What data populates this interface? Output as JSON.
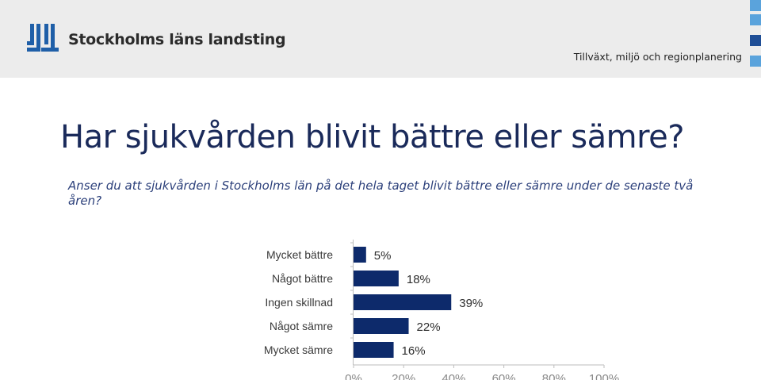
{
  "header": {
    "logo_text": "Stockholms läns landsting",
    "department": "Tillväxt, miljö och regionplanering",
    "colors": {
      "background": "#ececec",
      "accent": "#1f5fa8"
    }
  },
  "title": "Har sjukvården blivit bättre eller sämre?",
  "subtitle": "Anser du att sjukvården i Stockholms län på det hela taget blivit bättre eller sämre under de senaste två åren?",
  "chart_data": {
    "type": "bar",
    "orientation": "horizontal",
    "categories": [
      "Mycket bättre",
      "Något bättre",
      "Ingen skillnad",
      "Något sämre",
      "Mycket sämre"
    ],
    "values": [
      5,
      18,
      39,
      22,
      16
    ],
    "value_labels": [
      "5%",
      "18%",
      "39%",
      "22%",
      "16%"
    ],
    "xlim": [
      0,
      100
    ],
    "x_ticks": [
      "0%",
      "20%",
      "40%",
      "60%",
      "80%",
      "100%"
    ],
    "bar_color": "#0d2a6b",
    "grid": false,
    "legend": "none"
  }
}
